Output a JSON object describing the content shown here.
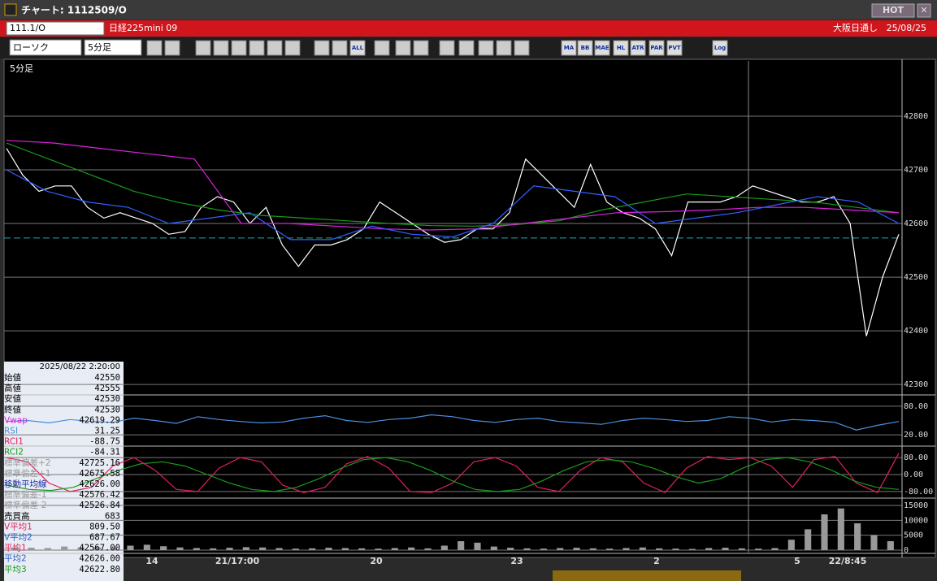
{
  "window": {
    "title": "チャート: 1112509/O",
    "hot": "HOT"
  },
  "symbol_bar": {
    "code": "111.1/O",
    "name": "日経225mini 09",
    "session": "大阪日通し",
    "date": "25/08/25"
  },
  "toolbar": {
    "chart_style": "ローソク",
    "period": "5分足",
    "icon_labels": [
      "ALL",
      "MA",
      "BB",
      "MAE",
      "HL",
      "ATR",
      "PAR",
      "PVT",
      "Log"
    ]
  },
  "chart_data": [
    {
      "type": "line",
      "label": "5分足",
      "ylim": [
        42282,
        42903
      ],
      "yticks": [
        42300,
        42400,
        42500,
        42600,
        42700,
        42800
      ],
      "reference_line": 42573,
      "series": [
        {
          "color": "#ffffff",
          "values": [
            42740,
            42690,
            42660,
            42670,
            42670,
            42630,
            42610,
            42620,
            42610,
            42600,
            42580,
            42585,
            42630,
            42650,
            42640,
            42600,
            42630,
            42560,
            42520,
            42560,
            42560,
            42570,
            42590,
            42640,
            42620,
            42600,
            42580,
            42565,
            42570,
            42590,
            42590,
            42620,
            42720,
            42690,
            42660,
            42630,
            42710,
            42640,
            42620,
            42610,
            42590,
            42540,
            42640,
            42640,
            42640,
            42650,
            42670,
            42660,
            42650,
            42640,
            42640,
            42650,
            42600,
            42390,
            42500,
            42580
          ]
        },
        {
          "color": "#1a9a1a",
          "values": [
            42750,
            42720,
            42690,
            42660,
            42640,
            42625,
            42615,
            42610,
            42605,
            42600,
            42596,
            42595,
            42598,
            42605,
            42625,
            42640,
            42655,
            42650,
            42645,
            42640,
            42630,
            42620
          ]
        },
        {
          "color": "#dd22dd",
          "values": [
            42755,
            42750,
            42740,
            42730,
            42720,
            42600,
            42600,
            42595,
            42590,
            42588,
            42590,
            42600,
            42610,
            42620,
            42622,
            42625,
            42630,
            42630,
            42625,
            42620
          ]
        },
        {
          "color": "#3060ff",
          "values": [
            42700,
            42660,
            42640,
            42630,
            42600,
            42610,
            42620,
            42570,
            42570,
            42595,
            42580,
            42575,
            42600,
            42670,
            42660,
            42650,
            42600,
            42610,
            42620,
            42635,
            42650,
            42640,
            42600
          ]
        }
      ]
    },
    {
      "type": "line",
      "ylim": [
        -2,
        102
      ],
      "yticks": [
        {
          "value": 80,
          "label": "80.00"
        },
        {
          "value": 20,
          "label": "20.00"
        }
      ],
      "series": [
        {
          "color": "#4d8fe0",
          "values": [
            48,
            50,
            45,
            52,
            48,
            46,
            55,
            50,
            44,
            58,
            52,
            48,
            45,
            47,
            55,
            60,
            50,
            46,
            52,
            55,
            62,
            58,
            50,
            46,
            52,
            55,
            48,
            45,
            42,
            50,
            55,
            52,
            48,
            50,
            58,
            55,
            47,
            52,
            50,
            46,
            30,
            40,
            48
          ]
        }
      ]
    },
    {
      "type": "line",
      "ylim": [
        -107,
        130
      ],
      "yticks": [
        {
          "value": 80,
          "label": "80.00"
        },
        {
          "value": 0,
          "label": "0.00"
        },
        {
          "value": -80,
          "label": "-80.00"
        }
      ],
      "series": [
        {
          "color": "#e0205a",
          "values": [
            80,
            60,
            -40,
            -80,
            -60,
            40,
            80,
            20,
            -70,
            -80,
            30,
            80,
            60,
            -50,
            -85,
            -60,
            50,
            85,
            30,
            -80,
            -85,
            -40,
            60,
            80,
            40,
            -60,
            -80,
            20,
            80,
            60,
            -40,
            -85,
            30,
            85,
            70,
            80,
            40,
            -60,
            70,
            85,
            -40,
            -85,
            100
          ]
        },
        {
          "color": "#1a9a1a",
          "values": [
            -50,
            -70,
            -75,
            -60,
            -20,
            20,
            50,
            60,
            40,
            0,
            -40,
            -70,
            -80,
            -60,
            -20,
            30,
            70,
            80,
            60,
            20,
            -30,
            -70,
            -80,
            -70,
            -30,
            20,
            60,
            70,
            60,
            30,
            -10,
            -40,
            -20,
            30,
            70,
            80,
            60,
            20,
            -30,
            -60,
            -70
          ]
        }
      ]
    },
    {
      "type": "bar",
      "ylim": [
        -818,
        17182
      ],
      "yticks": [
        15000,
        10000,
        5000,
        0
      ],
      "color": "#999999",
      "values": [
        900,
        800,
        700,
        1200,
        900,
        1000,
        800,
        1500,
        1800,
        1300,
        900,
        700,
        600,
        800,
        1000,
        900,
        700,
        500,
        600,
        800,
        700,
        600,
        500,
        700,
        900,
        600,
        1500,
        3000,
        2500,
        1200,
        800,
        600,
        500,
        700,
        800,
        600,
        500,
        700,
        900,
        600,
        500,
        400,
        700,
        800,
        600,
        500,
        700,
        3500,
        7000,
        12000,
        14000,
        9000,
        5000,
        3000
      ]
    }
  ],
  "x_labels": [
    "14",
    "21/17:00",
    "20",
    "23",
    "2",
    "5",
    "22/8:45"
  ],
  "info_panel": {
    "timestamp": "2025/08/22  2:20:00",
    "rows": [
      {
        "label": "始値",
        "value": "42550",
        "color": "#000000"
      },
      {
        "label": "高値",
        "value": "42555",
        "color": "#000000"
      },
      {
        "label": "安値",
        "value": "42530",
        "color": "#000000"
      },
      {
        "label": "終値",
        "value": "42530",
        "color": "#000000"
      },
      {
        "label": "Vwap",
        "value": "42619.29",
        "color": "#dd22dd"
      },
      {
        "label": "RSI",
        "value": "31.25",
        "color": "#4d8fe0"
      },
      {
        "label": "RCI1",
        "value": "-88.75",
        "color": "#e0205a"
      },
      {
        "label": "RCI2",
        "value": "-84.31",
        "color": "#1a9a1a"
      },
      {
        "label": "標準偏差+2",
        "value": "42725.16",
        "color": "#999999"
      },
      {
        "label": "標準偏差+1",
        "value": "42675.58",
        "color": "#999999"
      },
      {
        "label": "移動平均線",
        "value": "42626.00",
        "color": "#1a2a9a"
      },
      {
        "label": "標準偏差-1",
        "value": "42576.42",
        "color": "#999999"
      },
      {
        "label": "標準偏差-2",
        "value": "42526.84",
        "color": "#999999"
      },
      {
        "label": "売買高",
        "value": "683",
        "color": "#000000"
      },
      {
        "label": "V平均1",
        "value": "809.50",
        "color": "#e0205a"
      },
      {
        "label": "V平均2",
        "value": "687.67",
        "color": "#3060c0"
      },
      {
        "label": "平均1",
        "value": "42567.00",
        "color": "#e0205a"
      },
      {
        "label": "平均2",
        "value": "42626.00",
        "color": "#3060c0"
      },
      {
        "label": "平均3",
        "value": "42622.80",
        "color": "#1a9a1a"
      }
    ]
  }
}
